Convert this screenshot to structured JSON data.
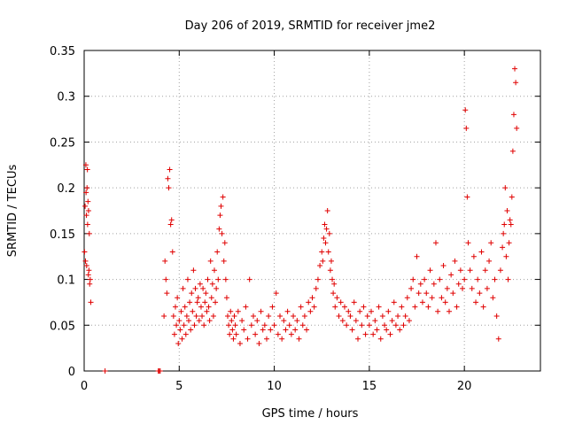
{
  "chart_data": {
    "type": "scatter",
    "title": "Day 206 of 2019, SRMTID for receiver jme2",
    "xlabel": "GPS time / hours",
    "ylabel": "SRMTID / TECUs",
    "xlim": [
      0,
      24
    ],
    "ylim": [
      0,
      0.35
    ],
    "grid": true,
    "marker": "+",
    "color": "#e00000",
    "x_ticks": [
      {
        "value": 0,
        "label": "0"
      },
      {
        "value": 5,
        "label": "5"
      },
      {
        "value": 10,
        "label": "10"
      },
      {
        "value": 15,
        "label": "15"
      },
      {
        "value": 20,
        "label": "20"
      }
    ],
    "y_ticks": [
      {
        "value": 0,
        "label": "0"
      },
      {
        "value": 0.05,
        "label": "0.05"
      },
      {
        "value": 0.1,
        "label": "0.1"
      },
      {
        "value": 0.15,
        "label": "0.15"
      },
      {
        "value": 0.2,
        "label": "0.2"
      },
      {
        "value": 0.25,
        "label": "0.25"
      },
      {
        "value": 0.3,
        "label": "0.3"
      },
      {
        "value": 0.35,
        "label": "0.35"
      }
    ],
    "series": [
      {
        "name": "jme2",
        "points": [
          [
            0.02,
            0.13
          ],
          [
            0.05,
            0.18
          ],
          [
            0.07,
            0.12
          ],
          [
            0.09,
            0.225
          ],
          [
            0.1,
            0.195
          ],
          [
            0.12,
            0.17
          ],
          [
            0.13,
            0.115
          ],
          [
            0.15,
            0.2
          ],
          [
            0.17,
            0.22
          ],
          [
            0.18,
            0.16
          ],
          [
            0.2,
            0.185
          ],
          [
            0.22,
            0.105
          ],
          [
            0.23,
            0.175
          ],
          [
            0.25,
            0.11
          ],
          [
            0.27,
            0.15
          ],
          [
            0.29,
            0.095
          ],
          [
            0.32,
            0.1
          ],
          [
            0.35,
            0.075
          ],
          [
            1.1,
            0.0
          ],
          [
            3.9,
            0.0
          ],
          [
            3.95,
            0.0
          ],
          [
            4.0,
            0.0
          ],
          [
            4.2,
            0.06
          ],
          [
            4.25,
            0.12
          ],
          [
            4.3,
            0.1
          ],
          [
            4.35,
            0.085
          ],
          [
            4.4,
            0.21
          ],
          [
            4.45,
            0.2
          ],
          [
            4.5,
            0.22
          ],
          [
            4.55,
            0.16
          ],
          [
            4.6,
            0.165
          ],
          [
            4.65,
            0.13
          ],
          [
            4.7,
            0.06
          ],
          [
            4.75,
            0.04
          ],
          [
            4.8,
            0.07
          ],
          [
            4.85,
            0.05
          ],
          [
            4.9,
            0.08
          ],
          [
            4.95,
            0.03
          ],
          [
            5.0,
            0.055
          ],
          [
            5.05,
            0.045
          ],
          [
            5.1,
            0.065
          ],
          [
            5.15,
            0.035
          ],
          [
            5.2,
            0.09
          ],
          [
            5.25,
            0.05
          ],
          [
            5.3,
            0.07
          ],
          [
            5.35,
            0.04
          ],
          [
            5.4,
            0.06
          ],
          [
            5.45,
            0.1
          ],
          [
            5.5,
            0.055
          ],
          [
            5.55,
            0.075
          ],
          [
            5.6,
            0.045
          ],
          [
            5.65,
            0.085
          ],
          [
            5.7,
            0.065
          ],
          [
            5.75,
            0.11
          ],
          [
            5.8,
            0.05
          ],
          [
            5.85,
            0.09
          ],
          [
            5.9,
            0.06
          ],
          [
            5.95,
            0.075
          ],
          [
            6.0,
            0.08
          ],
          [
            6.05,
            0.055
          ],
          [
            6.1,
            0.095
          ],
          [
            6.15,
            0.07
          ],
          [
            6.2,
            0.06
          ],
          [
            6.25,
            0.09
          ],
          [
            6.3,
            0.05
          ],
          [
            6.35,
            0.075
          ],
          [
            6.4,
            0.085
          ],
          [
            6.45,
            0.065
          ],
          [
            6.5,
            0.1
          ],
          [
            6.55,
            0.07
          ],
          [
            6.6,
            0.055
          ],
          [
            6.65,
            0.12
          ],
          [
            6.7,
            0.08
          ],
          [
            6.75,
            0.095
          ],
          [
            6.8,
            0.06
          ],
          [
            6.85,
            0.11
          ],
          [
            6.9,
            0.075
          ],
          [
            6.95,
            0.09
          ],
          [
            7.0,
            0.13
          ],
          [
            7.05,
            0.1
          ],
          [
            7.1,
            0.155
          ],
          [
            7.15,
            0.17
          ],
          [
            7.2,
            0.18
          ],
          [
            7.25,
            0.15
          ],
          [
            7.3,
            0.19
          ],
          [
            7.35,
            0.12
          ],
          [
            7.4,
            0.14
          ],
          [
            7.45,
            0.1
          ],
          [
            7.5,
            0.08
          ],
          [
            7.55,
            0.06
          ],
          [
            7.6,
            0.05
          ],
          [
            7.65,
            0.04
          ],
          [
            7.7,
            0.065
          ],
          [
            7.75,
            0.055
          ],
          [
            7.8,
            0.045
          ],
          [
            7.85,
            0.035
          ],
          [
            7.9,
            0.06
          ],
          [
            7.95,
            0.05
          ],
          [
            8.0,
            0.04
          ],
          [
            8.1,
            0.065
          ],
          [
            8.2,
            0.03
          ],
          [
            8.3,
            0.055
          ],
          [
            8.4,
            0.045
          ],
          [
            8.5,
            0.07
          ],
          [
            8.6,
            0.035
          ],
          [
            8.7,
            0.1
          ],
          [
            8.8,
            0.05
          ],
          [
            8.9,
            0.06
          ],
          [
            9.0,
            0.04
          ],
          [
            9.1,
            0.055
          ],
          [
            9.2,
            0.03
          ],
          [
            9.3,
            0.065
          ],
          [
            9.4,
            0.045
          ],
          [
            9.5,
            0.05
          ],
          [
            9.6,
            0.035
          ],
          [
            9.7,
            0.06
          ],
          [
            9.8,
            0.045
          ],
          [
            9.9,
            0.07
          ],
          [
            10.0,
            0.05
          ],
          [
            10.1,
            0.085
          ],
          [
            10.2,
            0.04
          ],
          [
            10.3,
            0.06
          ],
          [
            10.4,
            0.035
          ],
          [
            10.5,
            0.055
          ],
          [
            10.6,
            0.045
          ],
          [
            10.7,
            0.065
          ],
          [
            10.8,
            0.05
          ],
          [
            10.9,
            0.04
          ],
          [
            11.0,
            0.06
          ],
          [
            11.1,
            0.045
          ],
          [
            11.2,
            0.055
          ],
          [
            11.3,
            0.035
          ],
          [
            11.4,
            0.07
          ],
          [
            11.5,
            0.05
          ],
          [
            11.6,
            0.06
          ],
          [
            11.7,
            0.045
          ],
          [
            11.8,
            0.075
          ],
          [
            11.9,
            0.065
          ],
          [
            12.0,
            0.08
          ],
          [
            12.1,
            0.07
          ],
          [
            12.2,
            0.09
          ],
          [
            12.3,
            0.1
          ],
          [
            12.4,
            0.115
          ],
          [
            12.5,
            0.13
          ],
          [
            12.55,
            0.12
          ],
          [
            12.6,
            0.145
          ],
          [
            12.65,
            0.16
          ],
          [
            12.7,
            0.14
          ],
          [
            12.75,
            0.155
          ],
          [
            12.8,
            0.175
          ],
          [
            12.85,
            0.13
          ],
          [
            12.9,
            0.15
          ],
          [
            12.95,
            0.11
          ],
          [
            13.0,
            0.12
          ],
          [
            13.05,
            0.1
          ],
          [
            13.1,
            0.085
          ],
          [
            13.15,
            0.095
          ],
          [
            13.2,
            0.07
          ],
          [
            13.3,
            0.08
          ],
          [
            13.4,
            0.06
          ],
          [
            13.5,
            0.075
          ],
          [
            13.6,
            0.055
          ],
          [
            13.7,
            0.07
          ],
          [
            13.8,
            0.05
          ],
          [
            13.9,
            0.065
          ],
          [
            14.0,
            0.06
          ],
          [
            14.1,
            0.045
          ],
          [
            14.2,
            0.075
          ],
          [
            14.3,
            0.055
          ],
          [
            14.4,
            0.035
          ],
          [
            14.5,
            0.065
          ],
          [
            14.6,
            0.05
          ],
          [
            14.7,
            0.07
          ],
          [
            14.8,
            0.04
          ],
          [
            14.9,
            0.06
          ],
          [
            15.0,
            0.05
          ],
          [
            15.1,
            0.065
          ],
          [
            15.2,
            0.04
          ],
          [
            15.3,
            0.055
          ],
          [
            15.4,
            0.045
          ],
          [
            15.5,
            0.07
          ],
          [
            15.6,
            0.035
          ],
          [
            15.7,
            0.06
          ],
          [
            15.8,
            0.05
          ],
          [
            15.9,
            0.045
          ],
          [
            16.0,
            0.065
          ],
          [
            16.1,
            0.04
          ],
          [
            16.2,
            0.055
          ],
          [
            16.3,
            0.075
          ],
          [
            16.4,
            0.05
          ],
          [
            16.5,
            0.06
          ],
          [
            16.6,
            0.045
          ],
          [
            16.7,
            0.07
          ],
          [
            16.8,
            0.05
          ],
          [
            16.9,
            0.06
          ],
          [
            17.0,
            0.08
          ],
          [
            17.1,
            0.055
          ],
          [
            17.2,
            0.09
          ],
          [
            17.3,
            0.1
          ],
          [
            17.4,
            0.07
          ],
          [
            17.5,
            0.125
          ],
          [
            17.6,
            0.085
          ],
          [
            17.7,
            0.095
          ],
          [
            17.8,
            0.075
          ],
          [
            17.9,
            0.1
          ],
          [
            18.0,
            0.085
          ],
          [
            18.1,
            0.07
          ],
          [
            18.2,
            0.11
          ],
          [
            18.3,
            0.08
          ],
          [
            18.4,
            0.095
          ],
          [
            18.5,
            0.14
          ],
          [
            18.6,
            0.065
          ],
          [
            18.7,
            0.1
          ],
          [
            18.8,
            0.08
          ],
          [
            18.9,
            0.115
          ],
          [
            19.0,
            0.075
          ],
          [
            19.1,
            0.09
          ],
          [
            19.2,
            0.065
          ],
          [
            19.3,
            0.105
          ],
          [
            19.4,
            0.085
          ],
          [
            19.5,
            0.12
          ],
          [
            19.6,
            0.07
          ],
          [
            19.7,
            0.095
          ],
          [
            19.8,
            0.11
          ],
          [
            19.9,
            0.09
          ],
          [
            20.0,
            0.1
          ],
          [
            20.05,
            0.285
          ],
          [
            20.1,
            0.265
          ],
          [
            20.15,
            0.19
          ],
          [
            20.2,
            0.14
          ],
          [
            20.3,
            0.11
          ],
          [
            20.4,
            0.09
          ],
          [
            20.5,
            0.125
          ],
          [
            20.6,
            0.075
          ],
          [
            20.7,
            0.1
          ],
          [
            20.8,
            0.085
          ],
          [
            20.9,
            0.13
          ],
          [
            21.0,
            0.07
          ],
          [
            21.1,
            0.11
          ],
          [
            21.2,
            0.09
          ],
          [
            21.3,
            0.12
          ],
          [
            21.4,
            0.14
          ],
          [
            21.5,
            0.08
          ],
          [
            21.6,
            0.1
          ],
          [
            21.7,
            0.06
          ],
          [
            21.8,
            0.035
          ],
          [
            21.9,
            0.11
          ],
          [
            22.0,
            0.135
          ],
          [
            22.05,
            0.15
          ],
          [
            22.1,
            0.16
          ],
          [
            22.15,
            0.2
          ],
          [
            22.2,
            0.125
          ],
          [
            22.25,
            0.175
          ],
          [
            22.3,
            0.1
          ],
          [
            22.35,
            0.14
          ],
          [
            22.4,
            0.165
          ],
          [
            22.45,
            0.16
          ],
          [
            22.5,
            0.19
          ],
          [
            22.55,
            0.24
          ],
          [
            22.6,
            0.28
          ],
          [
            22.65,
            0.33
          ],
          [
            22.7,
            0.315
          ],
          [
            22.75,
            0.265
          ]
        ]
      }
    ]
  }
}
